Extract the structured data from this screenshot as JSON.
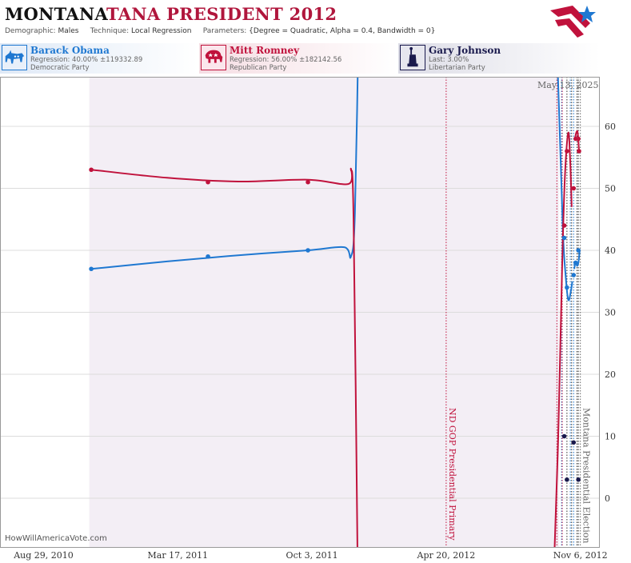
{
  "header": {
    "state": "MONTANA",
    "title_rest": "TANA PRESIDENT 2012",
    "demographic_label": "Demographic:",
    "demographic": "Males",
    "technique_label": "Technique:",
    "technique": "Local Regression",
    "parameters_label": "Parameters:",
    "parameters": "{Degree = Quadratic, Alpha = 0.4, Bandwidth = 0}"
  },
  "candidates": [
    {
      "name": "Barack Obama",
      "line2": "Regression: 40.00% ±119332.89",
      "line3": "Democratic Party",
      "color": "#1f78d1",
      "icon": "donkey-icon"
    },
    {
      "name": "Mitt Romney",
      "line2": "Regression: 56.00% ±182142.56",
      "line3": "Republican Party",
      "color": "#c0123c",
      "icon": "elephant-icon"
    },
    {
      "name": "Gary Johnson",
      "line2": "Last: 3.00%",
      "line3": "Libertarian Party",
      "color": "#1a1a4d",
      "icon": "statue-of-liberty-icon"
    }
  ],
  "date_stamp": "May 13, 2025",
  "credit": "HowWillAmericaVote.com",
  "chart_data": {
    "type": "line",
    "x_type": "date",
    "xlim": [
      "2010-06-25",
      "2012-12-05"
    ],
    "ylim": [
      -8,
      68
    ],
    "yticks": [
      0,
      10,
      20,
      30,
      40,
      50,
      60
    ],
    "xticks": [
      {
        "date": "2010-08-29",
        "label": "Aug 29, 2010"
      },
      {
        "date": "2011-03-17",
        "label": "Mar 17, 2011"
      },
      {
        "date": "2011-10-03",
        "label": "Oct 3, 2011"
      },
      {
        "date": "2012-04-20",
        "label": "Apr 20, 2012"
      },
      {
        "date": "2012-11-06",
        "label": "Nov 6, 2012"
      }
    ],
    "shaded_region": {
      "start": "2010-11-05",
      "end": "2012-10-05",
      "color": "#f3eef5"
    },
    "events": [
      {
        "date": "2012-04-20",
        "label": "ND GOP Presidential Primary",
        "color": "#c0123c"
      },
      {
        "date": "2012-11-06",
        "label": "Montana Presidential Election",
        "color": "#666666"
      }
    ],
    "poll_dates": [
      "2012-10-02",
      "2012-10-09",
      "2012-10-10",
      "2012-10-17",
      "2012-10-22",
      "2012-10-24",
      "2012-10-27",
      "2012-11-01",
      "2012-11-03"
    ],
    "series": [
      {
        "name": "Barack Obama",
        "color": "#1f78d1",
        "points": [
          [
            "2010-11-08",
            37
          ],
          [
            "2011-05-01",
            39
          ],
          [
            "2011-09-27",
            40
          ],
          [
            "2012-10-13",
            42
          ],
          [
            "2012-10-17",
            34
          ],
          [
            "2012-10-27",
            36
          ],
          [
            "2012-10-30",
            38
          ],
          [
            "2012-11-03",
            40
          ]
        ],
        "trend": [
          [
            "2010-11-08",
            37
          ],
          [
            "2011-03-01",
            38.2
          ],
          [
            "2011-06-15",
            39.2
          ],
          [
            "2011-09-27",
            40
          ],
          [
            "2011-11-20",
            40.5
          ],
          [
            "2011-11-30",
            39
          ],
          [
            "2011-12-06",
            46
          ],
          [
            "2011-12-12",
            80
          ]
        ],
        "trend_late": [
          [
            "2012-09-30",
            80
          ],
          [
            "2012-10-06",
            60
          ],
          [
            "2012-10-11",
            43
          ],
          [
            "2012-10-15",
            36
          ],
          [
            "2012-10-19",
            32
          ],
          [
            "2012-10-23",
            33.5
          ],
          [
            "2012-10-25",
            35
          ]
        ],
        "trend_final": [
          [
            "2012-10-28",
            37
          ],
          [
            "2012-10-30",
            38.2
          ],
          [
            "2012-11-01",
            37.5
          ],
          [
            "2012-11-03",
            38
          ],
          [
            "2012-11-05",
            40
          ]
        ]
      },
      {
        "name": "Mitt Romney",
        "color": "#c0123c",
        "points": [
          [
            "2010-11-08",
            53
          ],
          [
            "2011-05-01",
            51
          ],
          [
            "2011-09-27",
            51
          ],
          [
            "2012-10-13",
            44
          ],
          [
            "2012-10-17",
            56
          ],
          [
            "2012-10-27",
            50
          ],
          [
            "2012-10-30",
            58
          ],
          [
            "2012-11-03",
            58
          ],
          [
            "2012-11-04",
            56
          ]
        ],
        "trend": [
          [
            "2010-11-08",
            53
          ],
          [
            "2011-03-01",
            51.7
          ],
          [
            "2011-06-15",
            51.1
          ],
          [
            "2011-09-27",
            51.4
          ],
          [
            "2011-11-26",
            50.7
          ],
          [
            "2011-11-30",
            53
          ],
          [
            "2011-12-04",
            45
          ],
          [
            "2011-12-10",
            -10
          ]
        ],
        "trend_late": [
          [
            "2012-09-28",
            -10
          ],
          [
            "2012-10-04",
            10
          ],
          [
            "2012-10-10",
            38
          ],
          [
            "2012-10-14",
            52
          ],
          [
            "2012-10-19",
            59
          ],
          [
            "2012-10-22",
            54
          ],
          [
            "2012-10-24",
            47
          ]
        ],
        "trend_final": [
          [
            "2012-10-29",
            58
          ],
          [
            "2012-10-31",
            59
          ],
          [
            "2012-11-02",
            59
          ],
          [
            "2012-11-04",
            56
          ]
        ]
      },
      {
        "name": "Gary Johnson",
        "color": "#1a1a4d",
        "points": [
          [
            "2012-10-13",
            10
          ],
          [
            "2012-10-17",
            3
          ],
          [
            "2012-10-27",
            9
          ],
          [
            "2012-11-03",
            3
          ]
        ]
      }
    ]
  }
}
